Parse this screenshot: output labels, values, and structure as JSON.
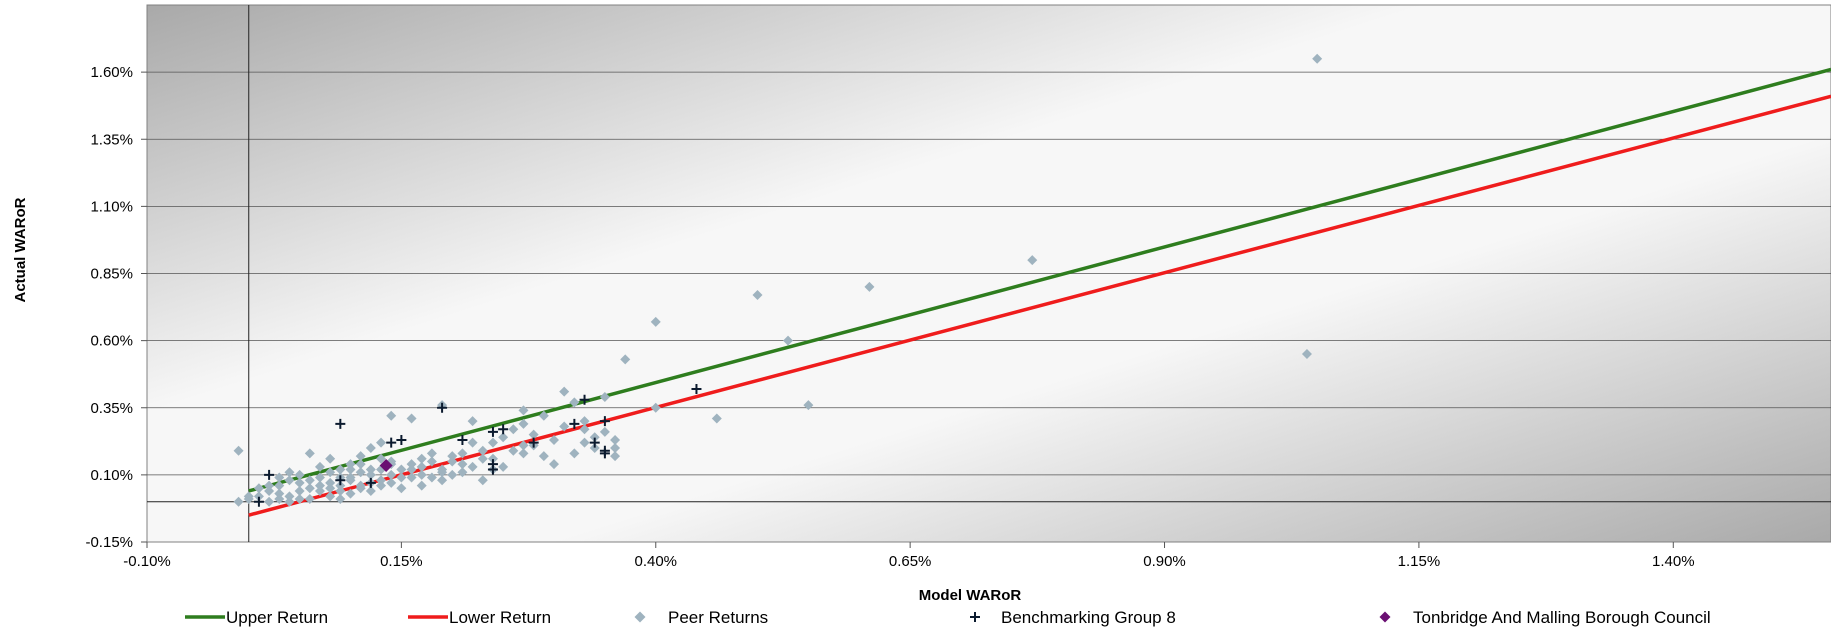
{
  "chart_data": {
    "type": "scatter",
    "xlabel": "Model WARoR",
    "ylabel": "Actual WARoR",
    "xlim": [
      -0.1,
      1.555
    ],
    "ylim": [
      -0.15,
      1.85
    ],
    "x_ticks": [
      "-0.10%",
      "0.15%",
      "0.40%",
      "0.65%",
      "0.90%",
      "1.15%",
      "1.40%"
    ],
    "x_tick_values": [
      -0.1,
      0.15,
      0.4,
      0.65,
      0.9,
      1.15,
      1.4
    ],
    "y_ticks": [
      "-0.15%",
      "0.10%",
      "0.35%",
      "0.60%",
      "0.85%",
      "1.10%",
      "1.35%",
      "1.60%"
    ],
    "y_tick_values": [
      -0.15,
      0.1,
      0.35,
      0.6,
      0.85,
      1.1,
      1.35,
      1.6
    ],
    "grid": "horizontal",
    "legend_position": "bottom",
    "background": "gradient grey-white",
    "series": [
      {
        "name": "Upper Return",
        "kind": "line",
        "color": "#2e7d1e",
        "points": [
          [
            0.0,
            0.04
          ],
          [
            1.555,
            1.61
          ]
        ]
      },
      {
        "name": "Lower Return",
        "kind": "line",
        "color": "#ef1c1c",
        "points": [
          [
            0.0,
            -0.05
          ],
          [
            1.555,
            1.51
          ]
        ]
      },
      {
        "name": "Peer Returns",
        "kind": "scatter",
        "marker": "diamond",
        "color": "#9fb3bf",
        "points": [
          [
            1.05,
            1.65
          ],
          [
            0.77,
            0.9
          ],
          [
            0.61,
            0.8
          ],
          [
            0.5,
            0.77
          ],
          [
            0.4,
            0.67
          ],
          [
            0.53,
            0.6
          ],
          [
            1.04,
            0.55
          ],
          [
            0.37,
            0.53
          ],
          [
            0.55,
            0.36
          ],
          [
            0.4,
            0.35
          ],
          [
            0.46,
            0.31
          ],
          [
            0.35,
            0.39
          ],
          [
            0.31,
            0.41
          ],
          [
            0.32,
            0.37
          ],
          [
            0.29,
            0.32
          ],
          [
            0.27,
            0.34
          ],
          [
            0.33,
            0.27
          ],
          [
            0.36,
            0.23
          ],
          [
            0.34,
            0.2
          ],
          [
            0.36,
            0.2
          ],
          [
            0.32,
            0.18
          ],
          [
            0.3,
            0.23
          ],
          [
            0.28,
            0.21
          ],
          [
            0.27,
            0.18
          ],
          [
            0.25,
            0.24
          ],
          [
            0.24,
            0.22
          ],
          [
            0.23,
            0.19
          ],
          [
            0.22,
            0.22
          ],
          [
            0.21,
            0.14
          ],
          [
            0.2,
            0.17
          ],
          [
            0.19,
            0.11
          ],
          [
            0.18,
            0.18
          ],
          [
            0.17,
            0.13
          ],
          [
            0.16,
            0.31
          ],
          [
            0.14,
            0.32
          ],
          [
            0.13,
            0.22
          ],
          [
            0.12,
            0.2
          ],
          [
            0.11,
            0.17
          ],
          [
            0.1,
            0.14
          ],
          [
            0.09,
            0.12
          ],
          [
            0.08,
            0.16
          ],
          [
            0.07,
            0.13
          ],
          [
            0.06,
            0.18
          ],
          [
            0.05,
            0.1
          ],
          [
            0.04,
            0.08
          ],
          [
            0.03,
            0.06
          ],
          [
            0.02,
            0.04
          ],
          [
            0.01,
            0.02
          ],
          [
            0.0,
            0.01
          ],
          [
            -0.01,
            0.19
          ],
          [
            -0.01,
            0.0
          ],
          [
            0.0,
            0.02
          ],
          [
            0.02,
            0.0
          ],
          [
            0.03,
            0.03
          ],
          [
            0.04,
            0.02
          ],
          [
            0.05,
            0.04
          ],
          [
            0.06,
            0.01
          ],
          [
            0.07,
            0.06
          ],
          [
            0.08,
            0.07
          ],
          [
            0.09,
            0.04
          ],
          [
            0.1,
            0.09
          ],
          [
            0.11,
            0.06
          ],
          [
            0.12,
            0.07
          ],
          [
            0.13,
            0.08
          ],
          [
            0.14,
            0.1
          ],
          [
            0.15,
            0.12
          ],
          [
            0.16,
            0.09
          ],
          [
            0.17,
            0.06
          ],
          [
            0.18,
            0.09
          ],
          [
            0.19,
            0.12
          ],
          [
            0.2,
            0.15
          ],
          [
            0.21,
            0.11
          ],
          [
            0.22,
            0.13
          ],
          [
            0.23,
            0.08
          ],
          [
            0.24,
            0.16
          ],
          [
            0.25,
            0.13
          ],
          [
            0.26,
            0.27
          ],
          [
            0.22,
            0.3
          ],
          [
            0.19,
            0.36
          ],
          [
            0.15,
            0.05
          ],
          [
            0.14,
            0.14
          ],
          [
            0.13,
            0.16
          ],
          [
            0.12,
            0.12
          ],
          [
            0.11,
            0.11
          ],
          [
            0.1,
            0.08
          ],
          [
            0.09,
            0.06
          ],
          [
            0.08,
            0.11
          ],
          [
            0.07,
            0.09
          ],
          [
            0.06,
            0.05
          ],
          [
            0.05,
            0.07
          ],
          [
            0.04,
            0.11
          ],
          [
            0.03,
            0.09
          ],
          [
            0.02,
            0.06
          ],
          [
            0.01,
            0.05
          ],
          [
            0.08,
            0.02
          ],
          [
            0.09,
            0.01
          ],
          [
            0.1,
            0.03
          ],
          [
            0.11,
            0.05
          ],
          [
            0.12,
            0.04
          ],
          [
            0.13,
            0.06
          ],
          [
            0.14,
            0.07
          ],
          [
            0.16,
            0.12
          ],
          [
            0.17,
            0.1
          ],
          [
            0.18,
            0.15
          ],
          [
            0.19,
            0.08
          ],
          [
            0.2,
            0.1
          ],
          [
            0.21,
            0.18
          ],
          [
            0.23,
            0.16
          ],
          [
            0.24,
            0.12
          ],
          [
            0.26,
            0.19
          ],
          [
            0.27,
            0.21
          ],
          [
            0.28,
            0.25
          ],
          [
            0.29,
            0.17
          ],
          [
            0.3,
            0.14
          ],
          [
            0.31,
            0.28
          ],
          [
            0.33,
            0.3
          ],
          [
            0.34,
            0.24
          ],
          [
            0.35,
            0.26
          ],
          [
            0.36,
            0.17
          ],
          [
            0.33,
            0.22
          ],
          [
            0.27,
            0.29
          ],
          [
            0.05,
            0.01
          ],
          [
            0.04,
            0.0
          ],
          [
            0.03,
            0.01
          ],
          [
            0.06,
            0.08
          ],
          [
            0.07,
            0.04
          ],
          [
            0.08,
            0.05
          ],
          [
            0.09,
            0.09
          ],
          [
            0.1,
            0.12
          ],
          [
            0.11,
            0.14
          ],
          [
            0.12,
            0.1
          ],
          [
            0.13,
            0.12
          ],
          [
            0.14,
            0.15
          ],
          [
            0.15,
            0.09
          ],
          [
            0.16,
            0.14
          ],
          [
            0.17,
            0.16
          ]
        ]
      },
      {
        "name": "Benchmarking Group 8",
        "kind": "scatter",
        "marker": "plus",
        "color": "#0b1a2e",
        "points": [
          [
            0.44,
            0.42
          ],
          [
            0.33,
            0.38
          ],
          [
            0.19,
            0.35
          ],
          [
            0.09,
            0.29
          ],
          [
            0.35,
            0.3
          ],
          [
            0.32,
            0.29
          ],
          [
            0.24,
            0.26
          ],
          [
            0.25,
            0.27
          ],
          [
            0.28,
            0.22
          ],
          [
            0.34,
            0.22
          ],
          [
            0.21,
            0.23
          ],
          [
            0.35,
            0.19
          ],
          [
            0.35,
            0.18
          ],
          [
            0.24,
            0.14
          ],
          [
            0.02,
            0.1
          ],
          [
            0.12,
            0.07
          ],
          [
            0.01,
            0.0
          ],
          [
            0.09,
            0.08
          ],
          [
            0.14,
            0.22
          ],
          [
            0.15,
            0.23
          ],
          [
            0.24,
            0.12
          ]
        ]
      },
      {
        "name": "Tonbridge And Malling Borough Council",
        "kind": "scatter",
        "marker": "diamond",
        "color": "#6a0f72",
        "points": [
          [
            0.135,
            0.135
          ]
        ]
      }
    ]
  },
  "legend": {
    "items": [
      {
        "label": "Upper Return",
        "symbol": "line",
        "color": "#2e7d1e"
      },
      {
        "label": "Lower Return",
        "symbol": "line",
        "color": "#ef1c1c"
      },
      {
        "label": "Peer Returns",
        "symbol": "diamond",
        "color": "#9fb3bf"
      },
      {
        "label": "Benchmarking Group 8",
        "symbol": "plus",
        "color": "#0b1a2e"
      },
      {
        "label": "Tonbridge And Malling Borough Council",
        "symbol": "diamond",
        "color": "#6a0f72"
      }
    ]
  }
}
